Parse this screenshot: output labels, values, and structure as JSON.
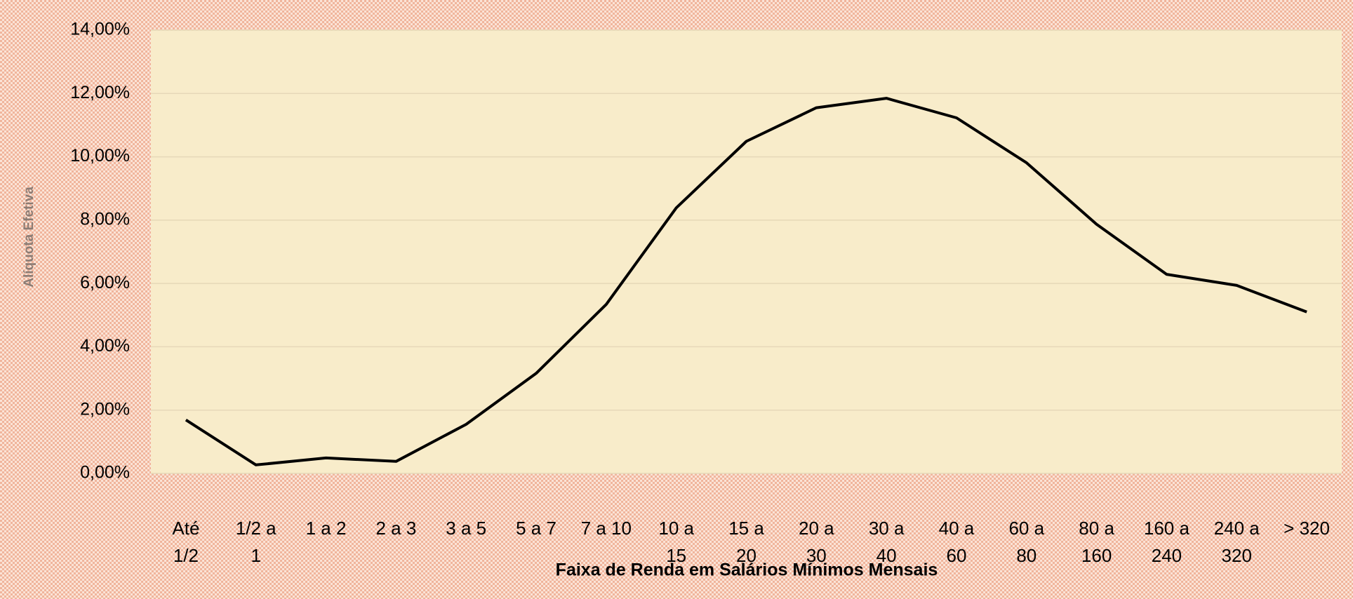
{
  "chart_data": {
    "type": "line",
    "x_label": "Faixa de Renda em Salários Mínimos Mensais",
    "y_label": "Alíquota Efetiva",
    "categories": [
      "Até\n1/2",
      "1/2 a\n1",
      "1 a 2",
      "2 a 3",
      "3 a 5",
      "5 a 7",
      "7 a 10",
      "10 a\n15",
      "15 a\n20",
      "20 a\n30",
      "30 a\n40",
      "40 a\n60",
      "60 a\n80",
      "80 a\n160",
      "160 a\n240",
      "240 a\n320",
      "> 320"
    ],
    "values": [
      1.69,
      0.27,
      0.49,
      0.38,
      1.55,
      3.16,
      5.34,
      8.39,
      10.49,
      11.55,
      11.85,
      11.23,
      9.81,
      7.87,
      6.29,
      5.94,
      5.1
    ],
    "color": "#000000",
    "ylim": [
      0,
      14
    ],
    "yticks": [
      {
        "value": 0,
        "label": "0,00%"
      },
      {
        "value": 2,
        "label": "2,00%"
      },
      {
        "value": 4,
        "label": "4,00%"
      },
      {
        "value": 6,
        "label": "6,00%"
      },
      {
        "value": 8,
        "label": "8,00%"
      },
      {
        "value": 10,
        "label": "10,00%"
      },
      {
        "value": 12,
        "label": "12,00%"
      },
      {
        "value": 14,
        "label": "14,00%"
      }
    ],
    "grid": true
  }
}
